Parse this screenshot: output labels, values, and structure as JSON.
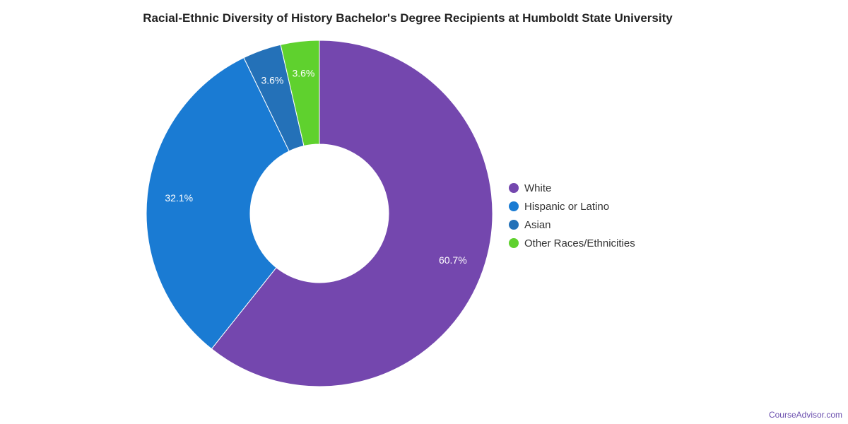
{
  "chart_data": {
    "type": "pie",
    "variant": "donut",
    "title": "Racial-Ethnic Diversity of History Bachelor's Degree Recipients at Humboldt State University",
    "slices": [
      {
        "label": "White",
        "value": 60.7,
        "display": "60.7%",
        "color": "#7447ae"
      },
      {
        "label": "Hispanic or Latino",
        "value": 32.1,
        "display": "32.1%",
        "color": "#1a7bd3"
      },
      {
        "label": "Asian",
        "value": 3.6,
        "display": "3.6%",
        "color": "#2471b8"
      },
      {
        "label": "Other Races/Ethnicities",
        "value": 3.6,
        "display": "3.6%",
        "color": "#5fd12e"
      }
    ],
    "legend_position": "right"
  },
  "footer": {
    "source": "CourseAdvisor.com"
  }
}
